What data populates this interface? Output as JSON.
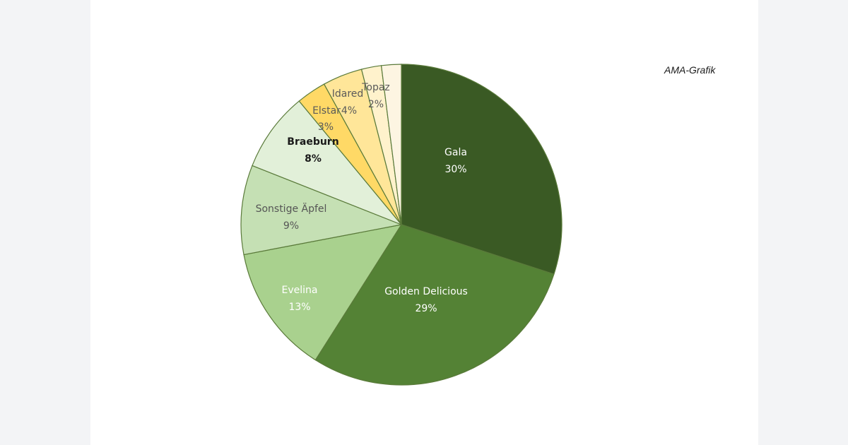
{
  "source_note": "AMA-Grafik",
  "chart_data": {
    "type": "pie",
    "slices": [
      {
        "name": "Gala",
        "value": 30,
        "value_label": "30%",
        "color": "#3a5a24",
        "text_color": "#ffffff",
        "bold": false
      },
      {
        "name": "Golden Delicious",
        "value": 29,
        "value_label": "29%",
        "color": "#548235",
        "text_color": "#ffffff",
        "bold": false
      },
      {
        "name": "Evelina",
        "value": 13,
        "value_label": "13%",
        "color": "#a9d18e",
        "text_color": "#ffffff",
        "bold": false
      },
      {
        "name": "Sonstige Äpfel",
        "value": 9,
        "value_label": "9%",
        "color": "#c5e0b4",
        "text_color": "#555555",
        "bold": false
      },
      {
        "name": "Braeburn",
        "value": 8,
        "value_label": "8%",
        "color": "#e2f0d9",
        "text_color": "#1a1a1a",
        "bold": true
      },
      {
        "name": "Elstar",
        "value": 3,
        "value_label": "3%",
        "color": "#ffd966",
        "text_color": "#5a5a5a",
        "bold": false
      },
      {
        "name": "Idared",
        "value": 4,
        "value_label": "4%",
        "color": "#ffe699",
        "text_color": "#5a5a5a",
        "bold": false
      },
      {
        "name": "Topaz",
        "value": 2,
        "value_label": "2%",
        "color": "#fff2cc",
        "text_color": "#5a5a5a",
        "bold": false
      },
      {
        "name": "",
        "value": 2,
        "value_label": "",
        "color": "#fdf5e2",
        "text_color": "#5a5a5a",
        "bold": false
      }
    ]
  }
}
